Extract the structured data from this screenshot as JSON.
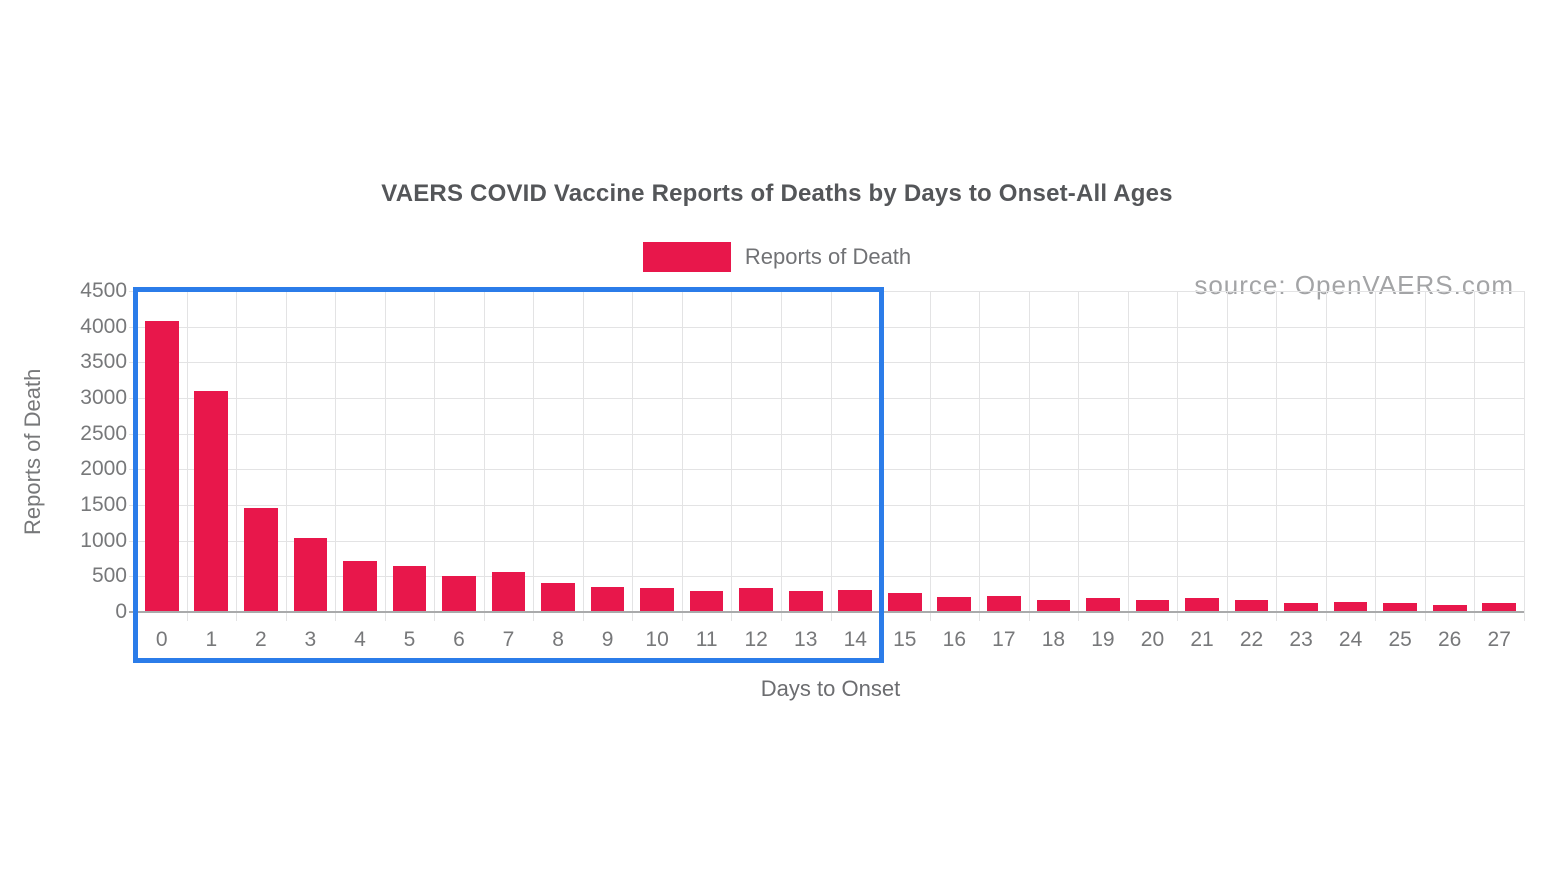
{
  "title": "VAERS COVID Vaccine Reports of Deaths by Days to Onset-All Ages",
  "legend": {
    "label": "Reports of Death",
    "color": "#e8174b"
  },
  "source": "source: OpenVAERS.com",
  "chart_data": {
    "type": "bar",
    "title": "VAERS COVID Vaccine Reports of Deaths by Days to Onset-All Ages",
    "xlabel": "Days to Onset",
    "ylabel": "Reports of Death",
    "categories": [
      "0",
      "1",
      "2",
      "3",
      "4",
      "5",
      "6",
      "7",
      "8",
      "9",
      "10",
      "11",
      "12",
      "13",
      "14",
      "15",
      "16",
      "17",
      "18",
      "19",
      "20",
      "21",
      "22",
      "23",
      "24",
      "25",
      "26",
      "27"
    ],
    "series": [
      {
        "name": "Reports of Death",
        "values": [
          4080,
          3100,
          1460,
          1040,
          715,
          650,
          505,
          560,
          410,
          350,
          330,
          295,
          330,
          290,
          315,
          265,
          210,
          225,
          175,
          190,
          165,
          200,
          170,
          130,
          145,
          120,
          95,
          130
        ]
      }
    ],
    "ylim": [
      0,
      4500
    ],
    "yticks": [
      0,
      500,
      1000,
      1500,
      2000,
      2500,
      3000,
      3500,
      4000,
      4500
    ],
    "grid": true,
    "legend_position": "top",
    "bar_color": "#e8174b",
    "highlight_box": {
      "start_category": "0",
      "end_category": "14",
      "color": "#2b7ce9"
    }
  }
}
